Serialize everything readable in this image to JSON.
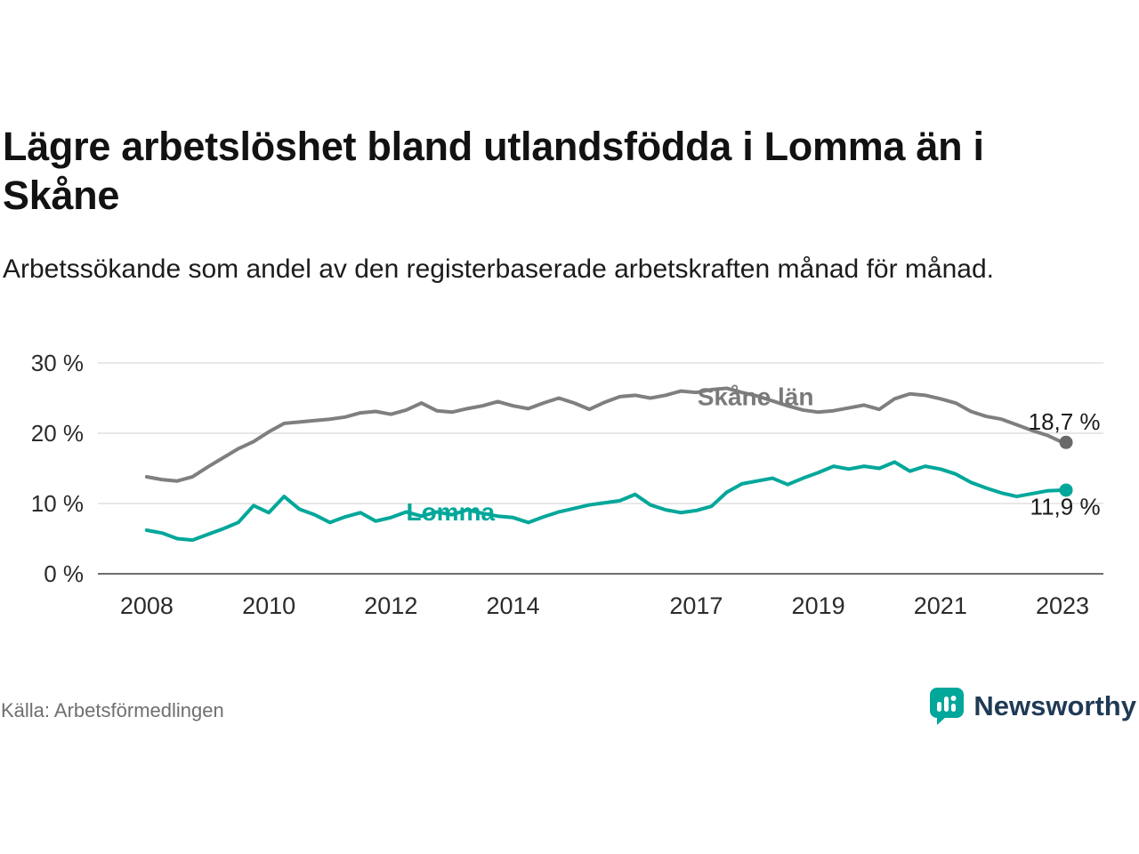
{
  "header": {
    "title": "Lägre arbetslöshet bland utlandsfödda i Lomma än i Skåne",
    "subtitle": "Arbetssökande som andel av den registerbaserade arbetskraften månad för månad."
  },
  "footer": {
    "source": "Källa: Arbetsförmedlingen",
    "brand": "Newsworthy"
  },
  "colors": {
    "skane": "#7f7f7f",
    "lomma": "#00a79a",
    "text_dark": "#1a1a1a",
    "grid": "#d9d9d9",
    "axis": "#3f3f3f",
    "brand_icon": "#00a79a",
    "brand_text": "#1f3a55"
  },
  "chart_data": {
    "type": "line",
    "title": "Lägre arbetslöshet bland utlandsfödda i Lomma än i Skåne",
    "xlabel": "",
    "ylabel": "",
    "ylim": [
      0,
      30
    ],
    "grid": true,
    "legend": "inline-labels",
    "ytick_values": [
      0,
      10,
      20,
      30
    ],
    "ytick_labels": [
      "0 %",
      "10 %",
      "20 %",
      "30 %"
    ],
    "xtick_values": [
      2008,
      2010,
      2012,
      2014,
      2017,
      2019,
      2021,
      2023
    ],
    "xtick_labels": [
      "2008",
      "2010",
      "2012",
      "2014",
      "2017",
      "2019",
      "2021",
      "2023"
    ],
    "x": [
      2008,
      2008.25,
      2008.5,
      2008.75,
      2009,
      2009.25,
      2009.5,
      2009.75,
      2010,
      2010.25,
      2010.5,
      2010.75,
      2011,
      2011.25,
      2011.5,
      2011.75,
      2012,
      2012.25,
      2012.5,
      2012.75,
      2013,
      2013.25,
      2013.5,
      2013.75,
      2014,
      2014.25,
      2014.5,
      2014.75,
      2015,
      2015.25,
      2015.5,
      2015.75,
      2016,
      2016.25,
      2016.5,
      2016.75,
      2017,
      2017.25,
      2017.5,
      2017.75,
      2018,
      2018.25,
      2018.5,
      2018.75,
      2019,
      2019.25,
      2019.5,
      2019.75,
      2020,
      2020.25,
      2020.5,
      2020.75,
      2021,
      2021.25,
      2021.5,
      2021.75,
      2022,
      2022.25,
      2022.5,
      2022.75,
      2023
    ],
    "series": [
      {
        "name": "Skåne län",
        "color": "#7f7f7f",
        "dot_color": "#696969",
        "end_label": "18,7 %",
        "values": [
          13.8,
          13.4,
          13.2,
          13.8,
          15.2,
          16.5,
          17.8,
          18.8,
          20.2,
          21.4,
          21.6,
          21.8,
          22.0,
          22.3,
          22.9,
          23.1,
          22.7,
          23.3,
          24.3,
          23.2,
          23.0,
          23.5,
          23.9,
          24.5,
          23.9,
          23.5,
          24.3,
          25.0,
          24.3,
          23.4,
          24.4,
          25.2,
          25.4,
          25.0,
          25.4,
          26.0,
          25.8,
          26.2,
          26.4,
          25.8,
          25.3,
          24.6,
          23.9,
          23.3,
          23.0,
          23.2,
          23.6,
          24.0,
          23.4,
          24.9,
          25.6,
          25.4,
          24.9,
          24.3,
          23.1,
          22.4,
          22.0,
          21.2,
          20.4,
          19.7,
          18.7
        ]
      },
      {
        "name": "Lomma",
        "color": "#00a79a",
        "dot_color": "#00a79a",
        "end_label": "11,9 %",
        "values": [
          6.2,
          5.8,
          5.0,
          4.8,
          5.6,
          6.4,
          7.3,
          9.7,
          8.7,
          11.0,
          9.2,
          8.4,
          7.3,
          8.1,
          8.7,
          7.5,
          8.0,
          8.8,
          8.2,
          8.8,
          8.4,
          9.1,
          8.6,
          8.2,
          8.0,
          7.3,
          8.1,
          8.8,
          9.3,
          9.8,
          10.1,
          10.4,
          11.3,
          9.8,
          9.1,
          8.7,
          9.0,
          9.6,
          11.6,
          12.8,
          13.2,
          13.6,
          12.7,
          13.6,
          14.4,
          15.3,
          14.9,
          15.3,
          15.0,
          15.9,
          14.6,
          15.3,
          14.9,
          14.2,
          13.0,
          12.2,
          11.5,
          11.0,
          11.4,
          11.8,
          11.9
        ]
      }
    ],
    "annotations": [
      {
        "text": "Skåne län",
        "x": 2017.02,
        "y": 24.0,
        "anchor": "start",
        "color": "#7a7a7a",
        "weight": "bold",
        "size": 28
      },
      {
        "text": "Lomma",
        "x": 2012.25,
        "y": 7.6,
        "anchor": "start",
        "color": "#00a79a",
        "weight": "bold",
        "size": 28
      },
      {
        "text": "18,7 %",
        "x": 2023.62,
        "y": 20.5,
        "anchor": "end",
        "color": "#1a1a1a",
        "weight": "normal",
        "size": 26
      },
      {
        "text": "11,9 %",
        "x": 2023.62,
        "y": 8.4,
        "anchor": "end",
        "color": "#1a1a1a",
        "weight": "normal",
        "size": 26
      }
    ]
  }
}
